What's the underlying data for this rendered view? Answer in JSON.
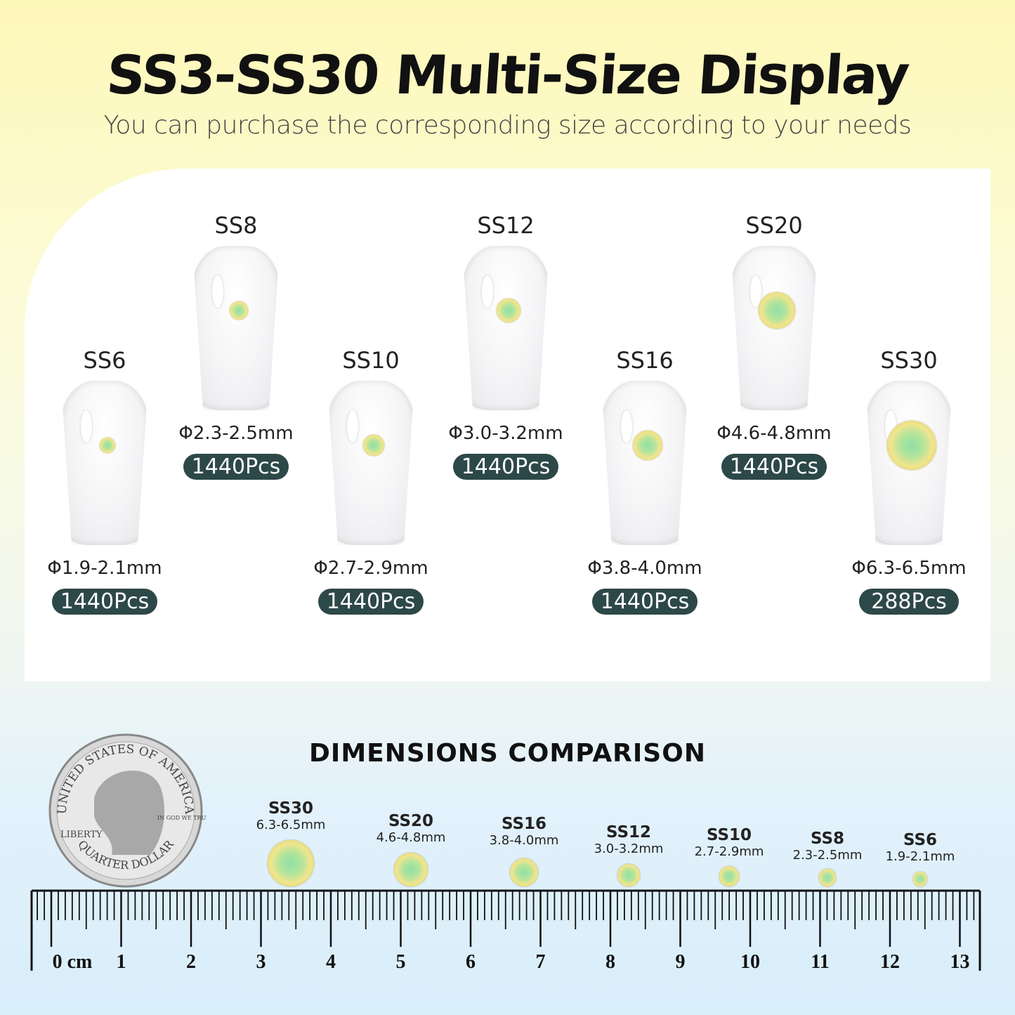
{
  "header": {
    "title": "SS3-SS30 Multi-Size Display",
    "subtitle": "You can purchase the corresponding size according to your needs"
  },
  "items": [
    {
      "size": "SS6",
      "diameter": "Φ1.9-2.1mm",
      "count": "1440Pcs",
      "gem_mm": 2.0
    },
    {
      "size": "SS8",
      "diameter": "Φ2.3-2.5mm",
      "count": "1440Pcs",
      "gem_mm": 2.4
    },
    {
      "size": "SS10",
      "diameter": "Φ2.7-2.9mm",
      "count": "1440Pcs",
      "gem_mm": 2.8
    },
    {
      "size": "SS12",
      "diameter": "Φ3.0-3.2mm",
      "count": "1440Pcs",
      "gem_mm": 3.1
    },
    {
      "size": "SS16",
      "diameter": "Φ3.8-4.0mm",
      "count": "1440Pcs",
      "gem_mm": 3.9
    },
    {
      "size": "SS20",
      "diameter": "Φ4.6-4.8mm",
      "count": "1440Pcs",
      "gem_mm": 4.7
    },
    {
      "size": "SS30",
      "diameter": "Φ6.3-6.5mm",
      "count": "288Pcs",
      "gem_mm": 6.4
    }
  ],
  "comparison": {
    "title": "DIMENSIONS COMPARISON",
    "items": [
      {
        "size": "SS30",
        "range": "6.3-6.5mm"
      },
      {
        "size": "SS20",
        "range": "4.6-4.8mm"
      },
      {
        "size": "SS16",
        "range": "3.8-4.0mm"
      },
      {
        "size": "SS12",
        "range": "3.0-3.2mm"
      },
      {
        "size": "SS10",
        "range": "2.7-2.9mm"
      },
      {
        "size": "SS8",
        "range": "2.3-2.5mm"
      },
      {
        "size": "SS6",
        "range": "1.9-2.1mm"
      }
    ]
  },
  "ruler": {
    "unit": "cm",
    "labels": [
      "0 cm",
      "1",
      "2",
      "3",
      "4",
      "5",
      "6",
      "7",
      "8",
      "9",
      "10",
      "11",
      "12",
      "13"
    ]
  },
  "coin": {
    "top": "UNITED STATES OF AMERICA",
    "bottom": "QUARTER DOLLAR",
    "left": "LIBERTY",
    "motto": "IN GOD WE TRUST"
  },
  "colors": {
    "pill": "#2d4848",
    "gem_center": "#8fe0a8",
    "gem_edge": "#d9cc55"
  }
}
